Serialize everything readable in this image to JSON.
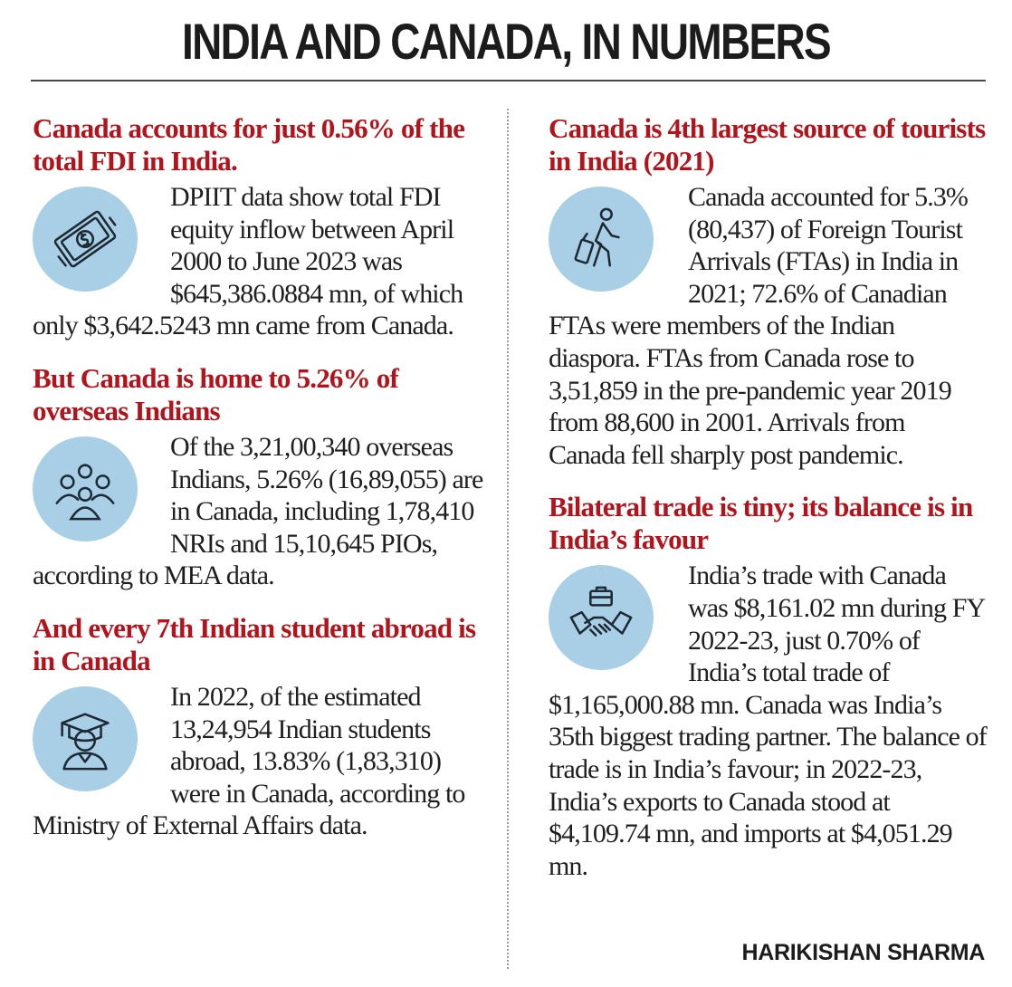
{
  "title": "INDIA AND CANADA, IN NUMBERS",
  "byline": "HARIKISHAN SHARMA",
  "left": [
    {
      "heading": "Canada accounts for just 0.56% of the total FDI in India.",
      "icon": "money-icon",
      "body": "DPIIT data show total FDI equity inflow between April 2000 to June 2023 was $645,386.0884 mn, of which only $3,642.5243 mn came from Canada."
    },
    {
      "heading": "But Canada is home to 5.26% of overseas Indians",
      "icon": "people-group-icon",
      "body": "Of the 3,21,00,340 overseas Indians, 5.26% (16,89,055) are in Canada, including 1,78,410 NRIs and 15,10,645 PIOs, according to MEA data."
    },
    {
      "heading": "And every 7th Indian student abroad is in Canada",
      "icon": "graduate-icon",
      "body": "In 2022, of the estimated 13,24,954 Indian students abroad, 13.83% (1,83,310) were in Canada, according to Ministry of External Affairs data."
    }
  ],
  "right": [
    {
      "heading": "Canada is 4th largest source of tourists in India (2021)",
      "icon": "traveller-icon",
      "body": "Canada accounted for 5.3% (80,437) of Foreign Tourist Arrivals (FTAs) in India in 2021; 72.6% of Canadian FTAs were members of the Indian diaspora. FTAs from Canada rose to 3,51,859 in the pre-pandemic year 2019 from 88,600 in 2001. Arrivals from Canada fell sharply post pandemic."
    },
    {
      "heading": "Bilateral trade is tiny; its balance is in India’s favour",
      "icon": "handshake-briefcase-icon",
      "body": "India’s trade with Canada was $8,161.02 mn during FY 2022-23, just 0.70% of India’s total trade of $1,165,000.88 mn. Canada was India’s 35th biggest trading partner. The balance of trade is in India’s favour; in 2022-23, India’s exports to Canada stood at $4,109.74 mn, and imports at $4,051.29 mn."
    }
  ]
}
